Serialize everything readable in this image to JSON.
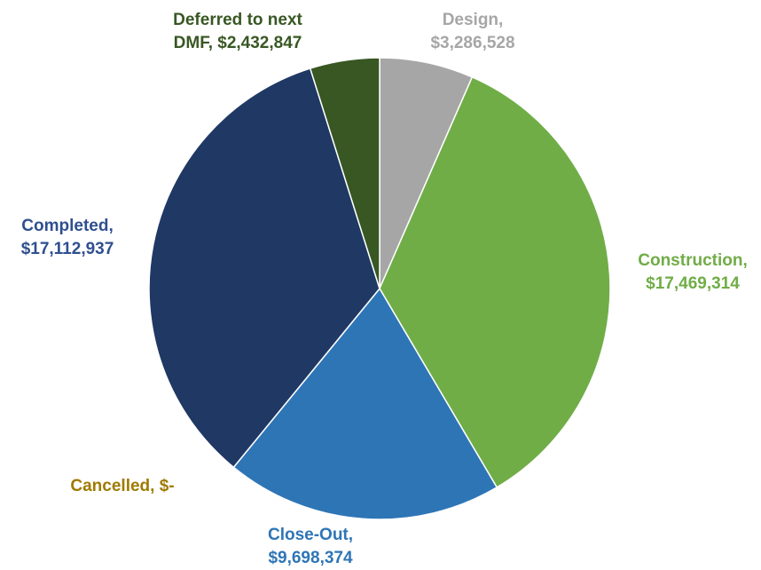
{
  "chart_data": {
    "type": "pie",
    "title": "",
    "slices": [
      {
        "name": "Design",
        "label_line1": "Design,",
        "label_line2": "$3,286,528",
        "value": 3286528,
        "color": "#a6a6a6",
        "label_color": "#a6a6a6"
      },
      {
        "name": "Construction",
        "label_line1": "Construction,",
        "label_line2": "$17,469,314",
        "value": 17469314,
        "color": "#70ad47",
        "label_color": "#70ad47"
      },
      {
        "name": "Close-Out",
        "label_line1": "Close-Out,",
        "label_line2": "$9,698,374",
        "value": 9698374,
        "color": "#2e75b6",
        "label_color": "#2e75b6"
      },
      {
        "name": "Cancelled",
        "label_line1": "Cancelled,  $-",
        "label_line2": "",
        "value": 0,
        "color": "#bf9000",
        "label_color": "#a07a00"
      },
      {
        "name": "Completed",
        "label_line1": "Completed,",
        "label_line2": "$17,112,937",
        "value": 17112937,
        "color": "#203864",
        "label_color": "#2f4f8f"
      },
      {
        "name": "Deferred to next DMF",
        "label_line1": "Deferred to next",
        "label_line2": "DMF,  $2,432,847",
        "value": 2432847,
        "color": "#385723",
        "label_color": "#385723"
      }
    ]
  }
}
